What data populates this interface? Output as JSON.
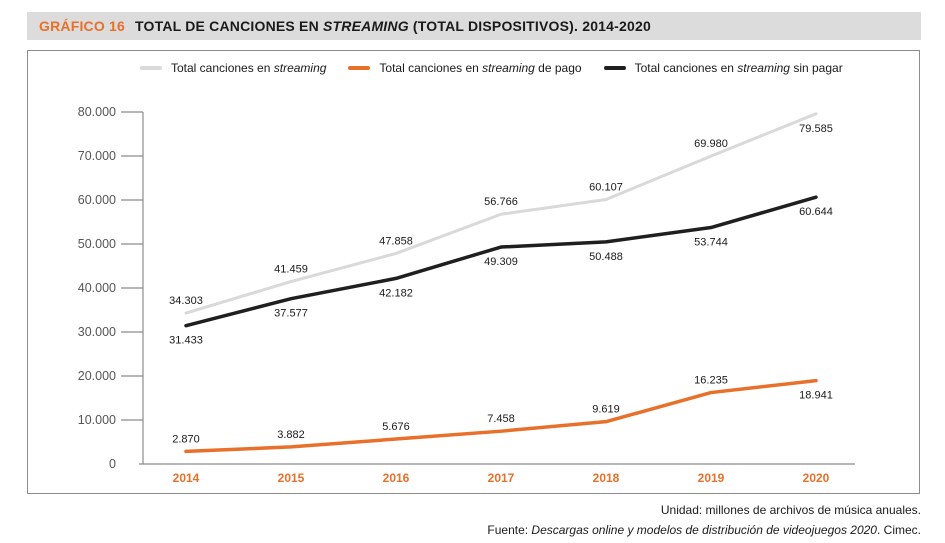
{
  "header": {
    "label": "GRÁFICO  16",
    "title_part1": "TOTAL DE CANCIONES EN ",
    "title_italic": "STREAMING",
    "title_part2": " (TOTAL DISPOSITIVOS). 2014-2020"
  },
  "legend": [
    {
      "prefix": "Total canciones en ",
      "italic": "streaming",
      "suffix": "",
      "color": "#d9d9d9"
    },
    {
      "prefix": "Total canciones en ",
      "italic": "streaming",
      "suffix": " de pago",
      "color": "#e8702a"
    },
    {
      "prefix": "Total canciones en ",
      "italic": "streaming",
      "suffix": " sin pagar",
      "color": "#1f1f1f"
    }
  ],
  "footer": {
    "unit": "Unidad: millones de archivos de música anuales.",
    "source_prefix": "Fuente: ",
    "source_italic": "Descargas online y modelos de distribución de videojuegos 2020",
    "source_suffix": ". Cimec."
  },
  "chart_data": {
    "type": "line",
    "title": "GRÁFICO 16 TOTAL DE CANCIONES EN STREAMING (TOTAL DISPOSITIVOS). 2014-2020",
    "xlabel": "",
    "ylabel": "",
    "x": [
      "2014",
      "2015",
      "2016",
      "2017",
      "2018",
      "2019",
      "2020"
    ],
    "ylim": [
      0,
      80000
    ],
    "yticks": [
      0,
      10000,
      20000,
      30000,
      40000,
      50000,
      60000,
      70000,
      80000
    ],
    "ytick_labels": [
      "0",
      "10.000",
      "20.000",
      "30.000",
      "40.000",
      "50.000",
      "60.000",
      "70.000",
      "80.000"
    ],
    "grid": false,
    "legend_position": "top",
    "x_label_color": "#e8702a",
    "series": [
      {
        "name": "Total canciones en streaming",
        "color": "#d9d9d9",
        "values": [
          34303,
          41459,
          47858,
          56766,
          60107,
          69980,
          79585
        ],
        "labels": [
          "34.303",
          "41.459",
          "47.858",
          "56.766",
          "60.107",
          "69.980",
          "79.585"
        ],
        "label_pos": [
          "above",
          "above",
          "above",
          "above",
          "above",
          "above",
          "below"
        ]
      },
      {
        "name": "Total canciones en streaming de pago",
        "color": "#e8702a",
        "values": [
          2870,
          3882,
          5676,
          7458,
          9619,
          16235,
          18941
        ],
        "labels": [
          "2.870",
          "3.882",
          "5.676",
          "7.458",
          "9.619",
          "16.235",
          "18.941"
        ],
        "label_pos": [
          "above",
          "above",
          "above",
          "above",
          "above",
          "above",
          "below"
        ]
      },
      {
        "name": "Total canciones en streaming sin pagar",
        "color": "#1f1f1f",
        "values": [
          31433,
          37577,
          42182,
          49309,
          50488,
          53744,
          60644
        ],
        "labels": [
          "31.433",
          "37.577",
          "42.182",
          "49.309",
          "50.488",
          "53.744",
          "60.644"
        ],
        "label_pos": [
          "below",
          "below",
          "below",
          "below",
          "below",
          "below",
          "below"
        ]
      }
    ]
  }
}
